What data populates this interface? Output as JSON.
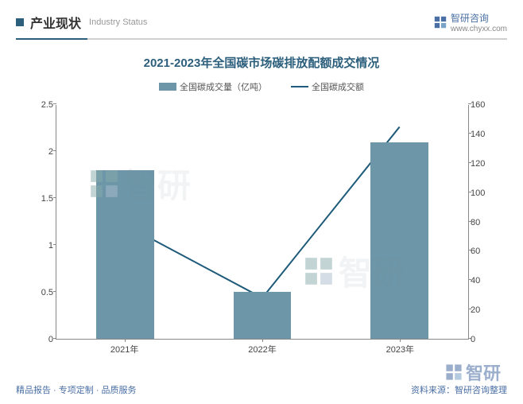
{
  "header": {
    "title_cn": "产业现状",
    "title_en": "Industry Status",
    "brand": "智研咨询",
    "brand_url": "www.chyxx.com"
  },
  "chart": {
    "type": "bar+line",
    "title": "2021-2023年全国碳市场碳排放配额成交情况",
    "legend_bar": "全国碳成交量（亿吨）",
    "legend_line": "全国碳成交额",
    "categories": [
      "2021年",
      "2022年",
      "2023年"
    ],
    "bar_values": [
      1.8,
      0.5,
      2.1
    ],
    "line_values": [
      78,
      28,
      145
    ],
    "left_axis": {
      "min": 0,
      "max": 2.5,
      "step": 0.5
    },
    "right_axis": {
      "min": 0,
      "max": 160,
      "step": 20
    },
    "bar_color": "#6d97a8",
    "line_color": "#1f5b7a",
    "axis_color": "#888888",
    "bar_width_pct": 14,
    "line_width": 2,
    "background": "#ffffff"
  },
  "footer": {
    "left": "精品报告 · 专项定制 · 品质服务",
    "right": "资料来源：智研咨询整理"
  },
  "watermark_text": "智研"
}
